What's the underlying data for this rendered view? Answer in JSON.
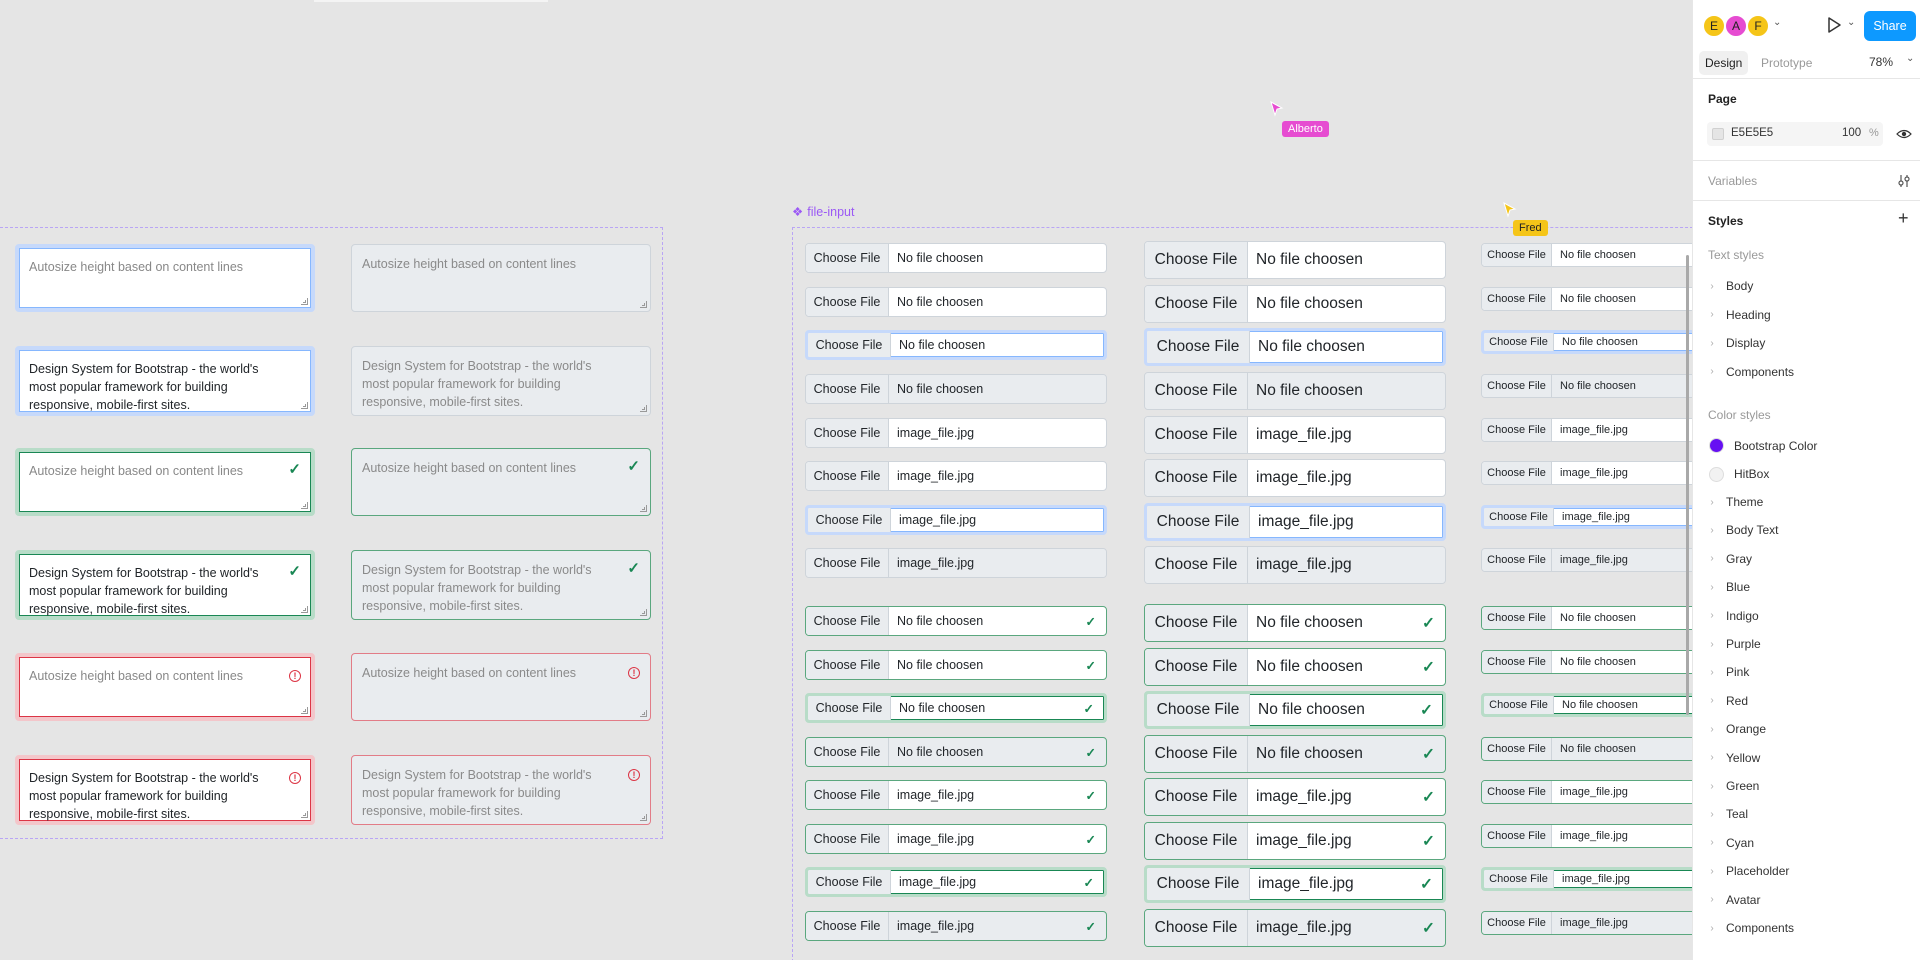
{
  "collaborators": [
    {
      "initial": "E",
      "color": "#f5c518"
    },
    {
      "initial": "A",
      "color": "#e64cd1"
    },
    {
      "initial": "F",
      "color": "#f5c518"
    }
  ],
  "cursors": [
    {
      "name": "Alberto",
      "color": "#e64cd1"
    },
    {
      "name": "Fred",
      "color": "#f5c518"
    }
  ],
  "header": {
    "share_label": "Share",
    "tabs": [
      "Design",
      "Prototype"
    ],
    "active_tab": "Design",
    "zoom": "78%"
  },
  "page_section": {
    "title": "Page",
    "bg_hex": "E5E5E5",
    "opacity": "100",
    "percent": "%"
  },
  "variables": {
    "title": "Variables"
  },
  "styles": {
    "title": "Styles",
    "text_styles_title": "Text styles",
    "text_styles": [
      "Body",
      "Heading",
      "Display",
      "Components"
    ],
    "color_styles_title": "Color styles",
    "color_swatches": [
      {
        "label": "Bootstrap Color",
        "color": "#6610f2"
      },
      {
        "label": "HitBox",
        "color": "#f2f2f2"
      }
    ],
    "color_groups": [
      "Theme",
      "Body Text",
      "Gray",
      "Blue",
      "Indigo",
      "Purple",
      "Pink",
      "Red",
      "Orange",
      "Yellow",
      "Green",
      "Teal",
      "Cyan",
      "Placeholder",
      "Avatar",
      "Components"
    ]
  },
  "frame_label": "file-input",
  "textareas": {
    "placeholder": "Autosize height based on content lines",
    "filled": "Design System for Bootstrap - the world's most popular framework for building responsive, mobile-first sites."
  },
  "file_inputs": {
    "button_label": "Choose File",
    "empty_text": "No file choosen",
    "file_text": "image_file.jpg"
  }
}
